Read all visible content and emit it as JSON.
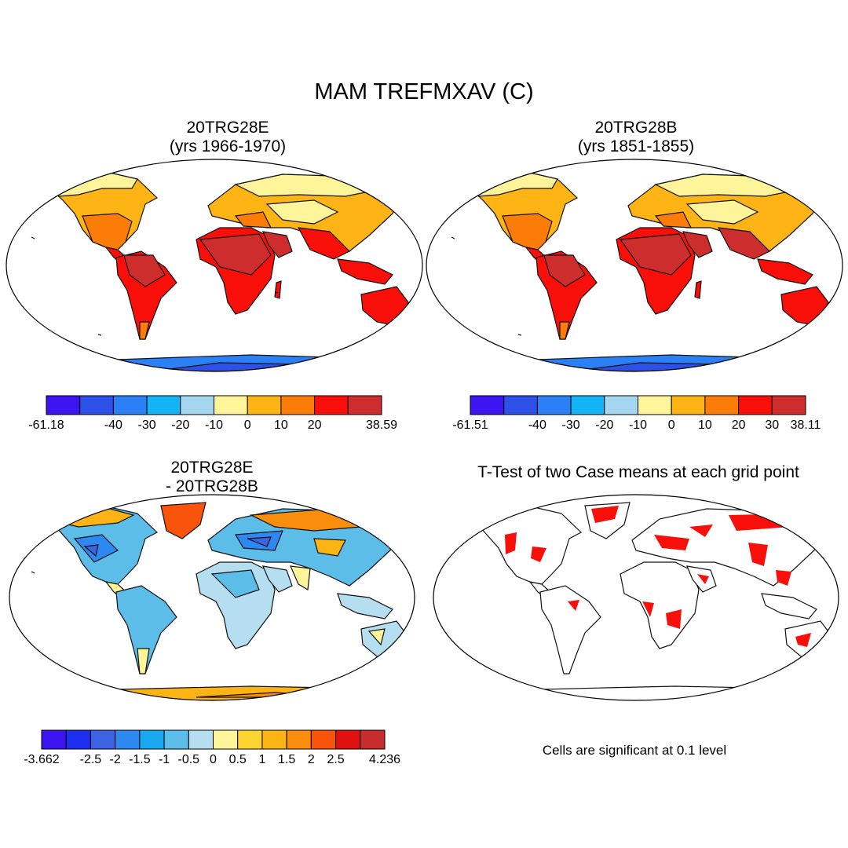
{
  "figure": {
    "title": "MAM TREFMXAV (C)"
  },
  "panels": [
    {
      "id": "case1",
      "title_line1": "20TRG28E",
      "title_line2": "(yrs 1966-1970)",
      "colorbar": {
        "colors": [
          "#3b14f0",
          "#2d50e6",
          "#2a80f4",
          "#12b4f5",
          "#a5d8f0",
          "#fef59a",
          "#fdb415",
          "#fb7d08",
          "#f90f0a",
          "#cd2d2d"
        ],
        "labels": [
          "-61.18",
          "-40",
          "-30",
          "-20",
          "-10",
          "0",
          "10",
          "20",
          "38.59"
        ],
        "label_boundaries": [
          0,
          2,
          3,
          4,
          5,
          6,
          7,
          8,
          10
        ]
      }
    },
    {
      "id": "case2",
      "title_line1": "20TRG28B",
      "title_line2": "(yrs 1851-1855)",
      "colorbar": {
        "colors": [
          "#3b14f0",
          "#2d50e6",
          "#2a80f4",
          "#12b4f5",
          "#a5d8f0",
          "#fef59a",
          "#fdb415",
          "#fb7d08",
          "#f90f0a",
          "#cd2d2d"
        ],
        "labels": [
          "-61.51",
          "-40",
          "-30",
          "-20",
          "-10",
          "0",
          "10",
          "20",
          "30",
          "38.11"
        ],
        "label_boundaries": [
          0,
          2,
          3,
          4,
          5,
          6,
          7,
          8,
          9,
          10
        ]
      }
    },
    {
      "id": "diff",
      "title_line1": "20TRG28E",
      "title_line2": "- 20TRG28B",
      "colorbar": {
        "colors": [
          "#3b14f0",
          "#1c2ff0",
          "#3d63e2",
          "#2e88f2",
          "#1aa8f2",
          "#5bbde8",
          "#b5def0",
          "#fef59a",
          "#fed530",
          "#fbb414",
          "#fa8d0c",
          "#f9530c",
          "#de1010",
          "#c82c2c"
        ],
        "labels": [
          "-3.662",
          "-2.5",
          "-2",
          "-1.5",
          "-1",
          "-0.5",
          "0",
          "0.5",
          "1",
          "1.5",
          "2",
          "2.5",
          "4.236"
        ],
        "label_boundaries": [
          0,
          2,
          3,
          4,
          5,
          6,
          7,
          8,
          9,
          10,
          11,
          12,
          14
        ]
      }
    },
    {
      "id": "ttest",
      "title_line1": "T-Test of two Case means at each grid point",
      "note": "Cells are significant at 0.1 level"
    }
  ]
}
